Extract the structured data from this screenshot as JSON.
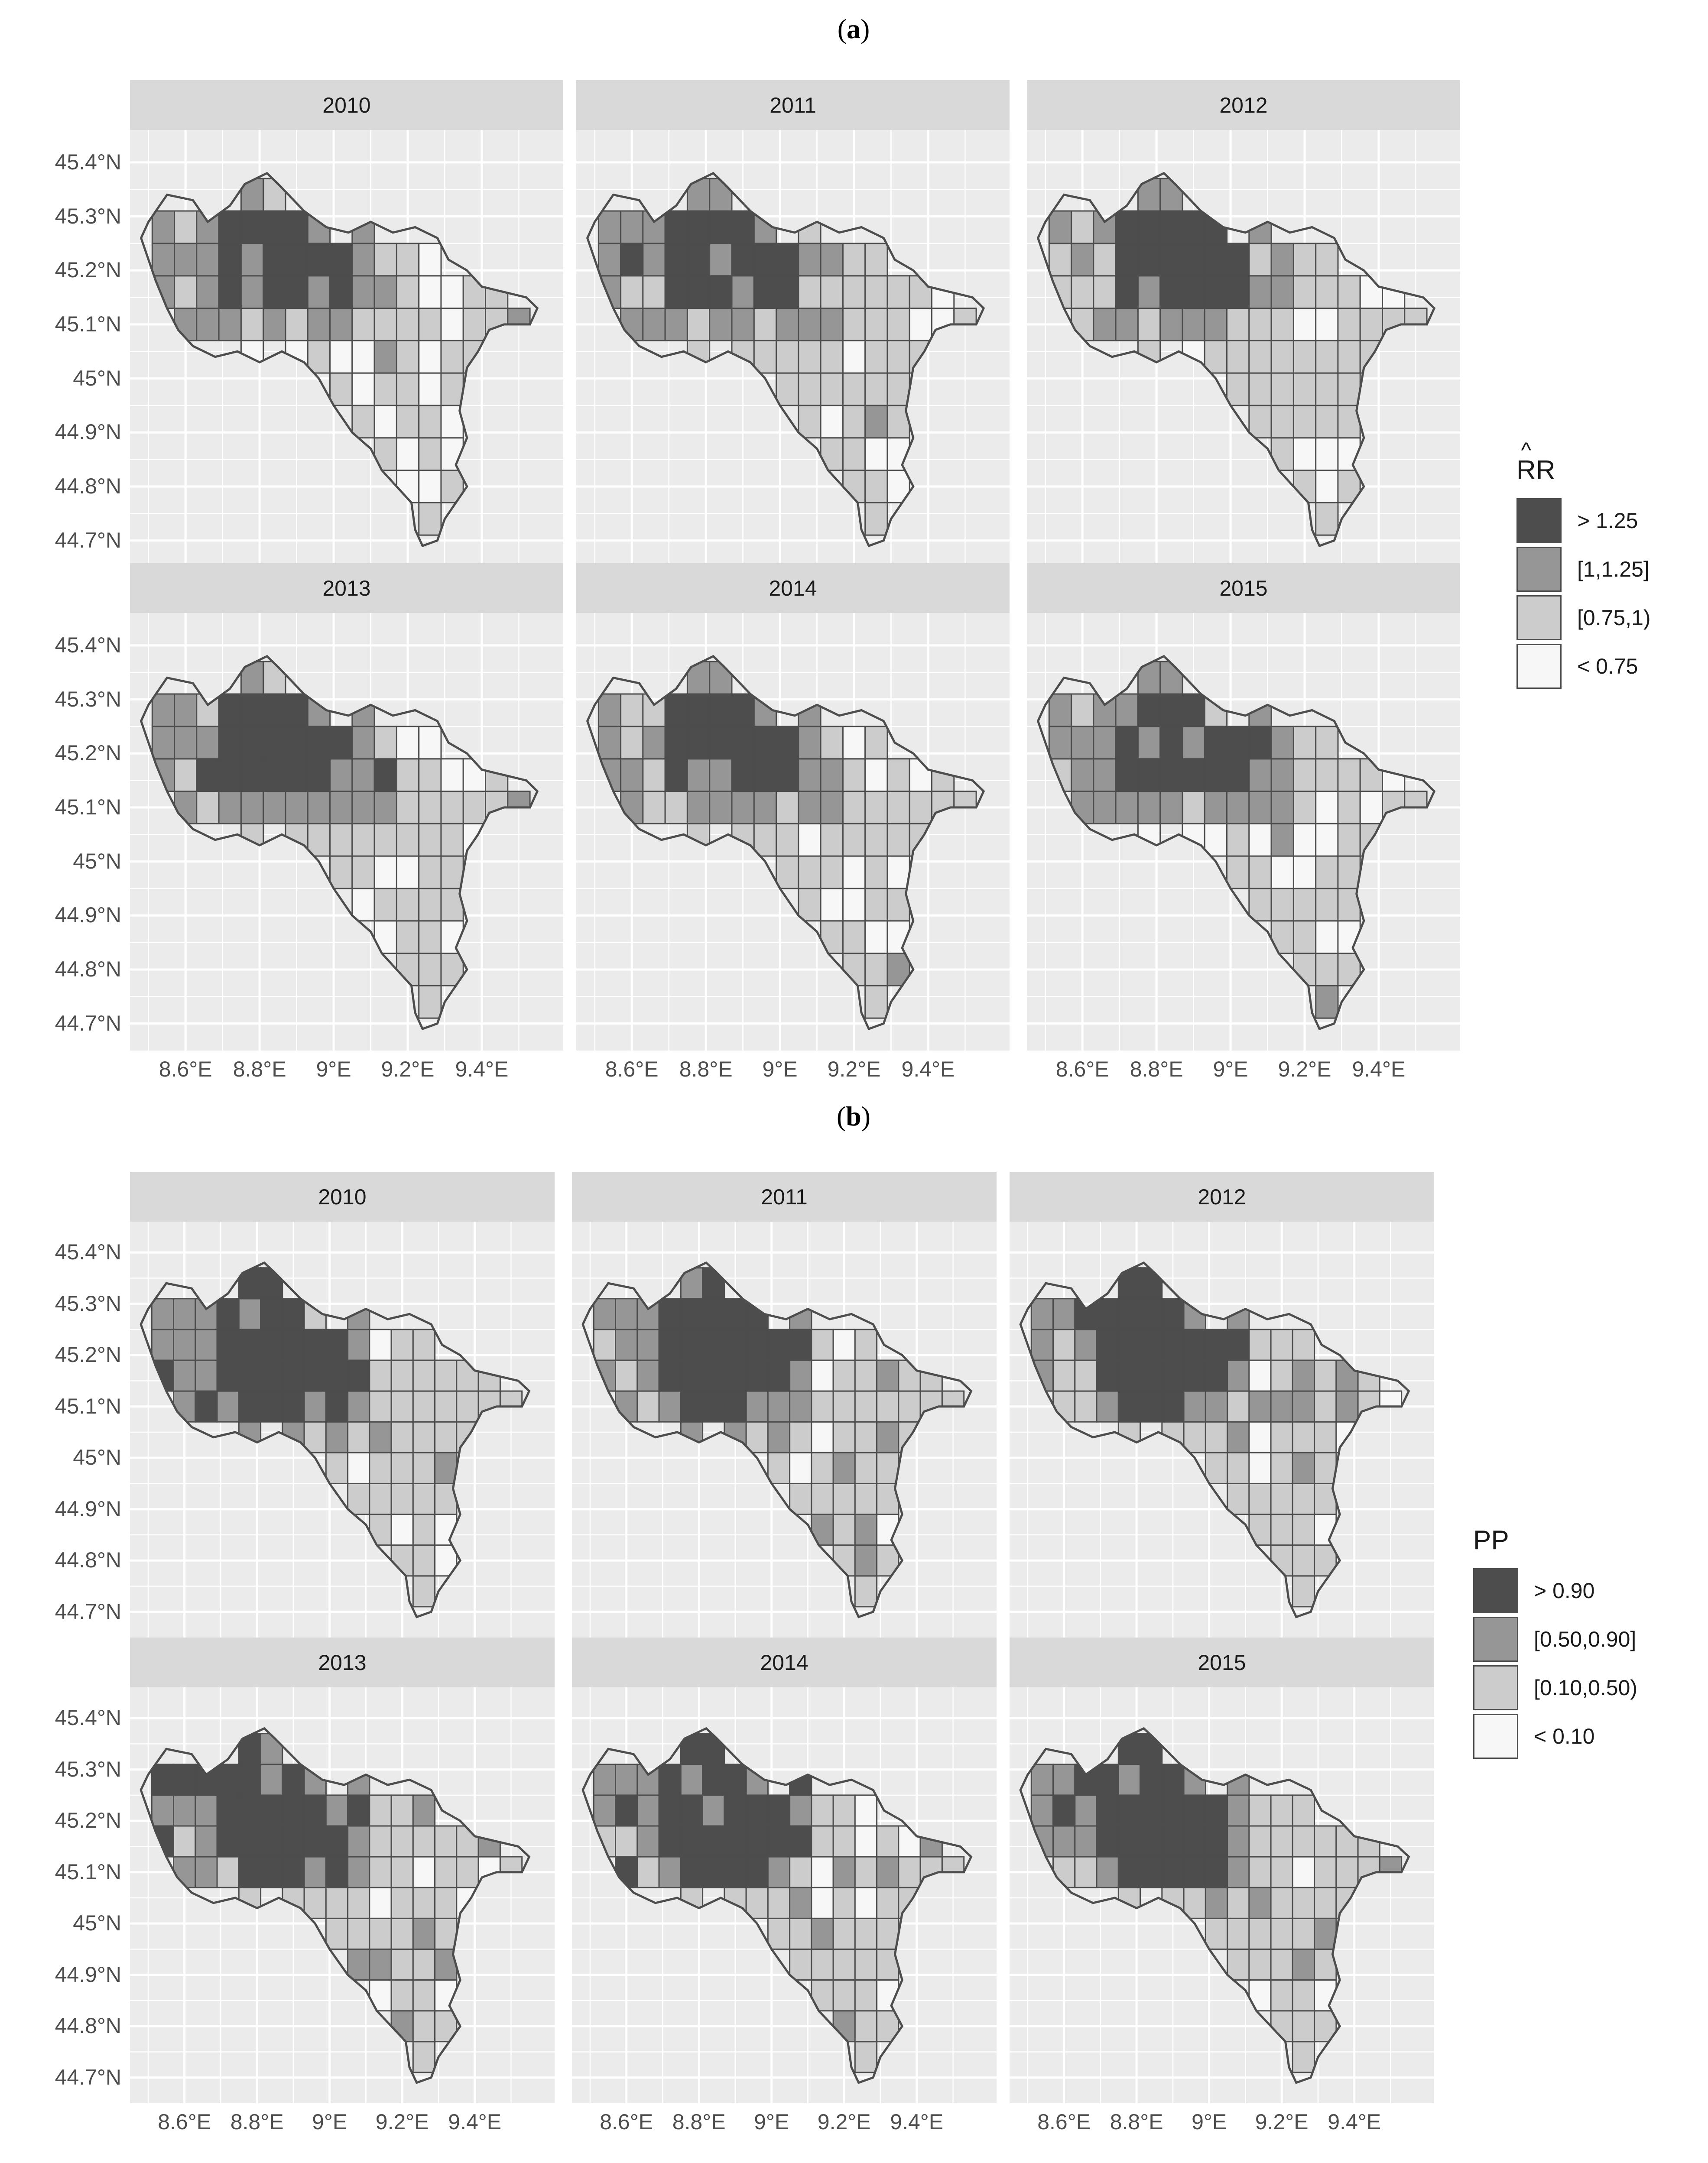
{
  "figure": {
    "part_a_label": "a",
    "part_b_label": "b"
  },
  "axes": {
    "y_ticks": [
      "45.4°N",
      "45.3°N",
      "45.2°N",
      "45.1°N",
      "45°N",
      "44.9°N",
      "44.8°N",
      "44.7°N"
    ],
    "x_ticks": [
      "8.6°E",
      "8.8°E",
      "9°E",
      "9.2°E",
      "9.4°E"
    ]
  },
  "part_a": {
    "facets": [
      "2010",
      "2011",
      "2012",
      "2013",
      "2014",
      "2015"
    ],
    "legend": {
      "title_prefix": "",
      "title_hat": "R",
      "title_rest": "R",
      "items": [
        {
          "label": "> 1.25",
          "color": "#4d4d4d"
        },
        {
          "label": "[1,1.25]",
          "color": "#969696"
        },
        {
          "label": "[0.75,1)",
          "color": "#cccccc"
        },
        {
          "label": "< 0.75",
          "color": "#f7f7f7"
        }
      ]
    }
  },
  "part_b": {
    "facets": [
      "2010",
      "2011",
      "2012",
      "2013",
      "2014",
      "2015"
    ],
    "legend": {
      "title": "PP",
      "items": [
        {
          "label": "> 0.90",
          "color": "#4d4d4d"
        },
        {
          "label": "[0.50,0.90]",
          "color": "#969696"
        },
        {
          "label": "[0.10,0.50)",
          "color": "#cccccc"
        },
        {
          "label": "< 0.10",
          "color": "#f7f7f7"
        }
      ]
    }
  },
  "style": {
    "panel_bg": "#ebebeb",
    "grid": "#ffffff",
    "border": "#4d4d4d"
  }
}
